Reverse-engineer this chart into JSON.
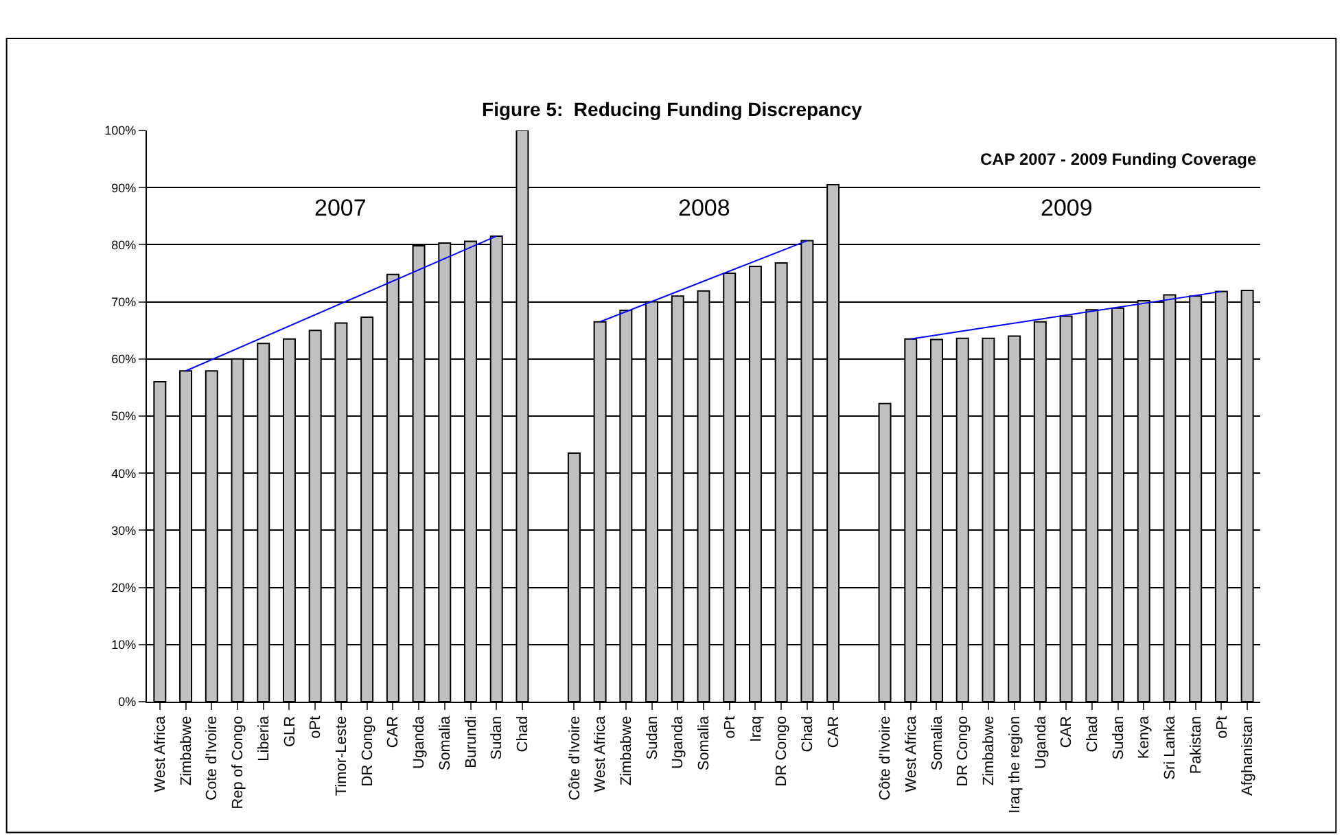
{
  "chart_data": {
    "type": "bar",
    "title": "Figure 5:  Reducing Funding Discrepancy",
    "subtitle": "CAP 2007 - 2009 Funding Coverage",
    "categories": [
      "West Africa",
      "Zimbabwe",
      "Cote d'Ivoire",
      "Rep of Congo",
      "Liberia",
      "GLR",
      "oPt",
      "Timor-Leste",
      "DR Congo",
      "CAR",
      "Uganda",
      "Somalia",
      "Burundi",
      "Sudan",
      "Chad",
      null,
      "Côte d'Ivoire",
      "West Africa",
      "Zimbabwe",
      "Sudan",
      "Uganda",
      "Somalia",
      "oPt",
      "Iraq",
      "DR Congo",
      "Chad",
      "CAR",
      null,
      "Côte d'Ivoire",
      "West Africa",
      "Somalia",
      "DR Congo",
      "Zimbabwe",
      "Iraq the region",
      "Uganda",
      "CAR",
      "Chad",
      "Sudan",
      "Kenya",
      "Sri Lanka",
      "Pakistan",
      "oPt",
      "Afghanistan"
    ],
    "series": [
      {
        "color": "#c0c0c0",
        "values": [
          56.0,
          57.9,
          57.9,
          60.0,
          62.7,
          63.5,
          65.0,
          66.3,
          67.3,
          74.8,
          79.8,
          80.3,
          80.6,
          81.5,
          100,
          null,
          43.5,
          66.5,
          68.5,
          70.0,
          71.0,
          71.9,
          75.0,
          76.2,
          76.8,
          80.7,
          90.5,
          null,
          52.2,
          63.5,
          63.4,
          63.6,
          63.6,
          64.0,
          66.5,
          67.5,
          68.6,
          68.9,
          70.2,
          71.2,
          71.0,
          71.8,
          72.0
        ]
      },
      {
        "type": "line",
        "color": "#0000ff",
        "values": [
          null,
          57.9,
          null,
          null,
          null,
          null,
          null,
          null,
          null,
          null,
          null,
          null,
          null,
          81.5,
          null,
          null,
          null,
          null,
          null,
          null,
          null,
          null,
          null,
          null,
          null,
          null,
          null,
          null,
          null,
          null,
          null,
          null,
          null,
          null,
          null,
          null,
          null,
          null,
          null,
          null,
          null,
          null,
          null
        ]
      },
      {
        "type": "line",
        "color": "#0000ff",
        "values": [
          null,
          null,
          null,
          null,
          null,
          null,
          null,
          null,
          null,
          null,
          null,
          null,
          null,
          null,
          null,
          null,
          null,
          66.5,
          null,
          null,
          null,
          null,
          null,
          null,
          null,
          80.7,
          null,
          null,
          null,
          null,
          null,
          null,
          null,
          null,
          null,
          null,
          null,
          null,
          null,
          null,
          null,
          null,
          null
        ]
      },
      {
        "type": "line",
        "color": "#0000ff",
        "values": [
          null,
          null,
          null,
          null,
          null,
          null,
          null,
          null,
          null,
          null,
          null,
          null,
          null,
          null,
          null,
          null,
          null,
          null,
          null,
          null,
          null,
          null,
          null,
          null,
          null,
          null,
          null,
          null,
          null,
          63.5,
          null,
          null,
          null,
          null,
          null,
          null,
          null,
          null,
          null,
          null,
          null,
          71.8,
          null
        ]
      }
    ],
    "annotations": [
      "2007",
      "2008",
      "2009"
    ],
    "ylim": [
      0,
      100
    ],
    "yticks": [
      {
        "value": 0,
        "label": "0%"
      },
      {
        "value": 10,
        "label": "10%"
      },
      {
        "value": 20,
        "label": "20%"
      },
      {
        "value": 30,
        "label": "30%"
      },
      {
        "value": 40,
        "label": "40%"
      },
      {
        "value": 50,
        "label": "50%"
      },
      {
        "value": 60,
        "label": "60%"
      },
      {
        "value": 70,
        "label": "70%"
      },
      {
        "value": 80,
        "label": "80%"
      },
      {
        "value": 90,
        "label": "90%"
      },
      {
        "value": 100,
        "label": "100%"
      }
    ],
    "grid": "y",
    "marker": "none"
  }
}
